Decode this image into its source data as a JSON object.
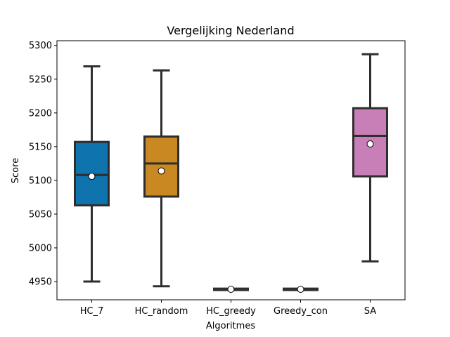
{
  "chart_data": {
    "type": "box",
    "title": "Vergelijking Nederland",
    "xlabel": "Algoritmes",
    "ylabel": "Score",
    "ylim": [
      4923,
      5307
    ],
    "yticks": [
      4950,
      5000,
      5050,
      5100,
      5150,
      5200,
      5250,
      5300
    ],
    "grid": false,
    "categories": [
      "HC_7",
      "HC_random",
      "HC_greedy",
      "Greedy_con",
      "SA"
    ],
    "boxes": [
      {
        "category": "HC_7",
        "color": "#0F73AE",
        "whisker_low": 4950,
        "q1": 5063,
        "median": 5108,
        "q3": 5157,
        "whisker_high": 5269,
        "mean": 5106
      },
      {
        "category": "HC_random",
        "color": "#C98822",
        "whisker_low": 4943,
        "q1": 5076,
        "median": 5125,
        "q3": 5165,
        "whisker_high": 5263,
        "mean": 5114
      },
      {
        "category": "HC_greedy",
        "color": "#1B9E77",
        "whisker_low": 4938.5,
        "q1": 4938.5,
        "median": 4938.5,
        "q3": 4938.5,
        "whisker_high": 4938.5,
        "mean": 4938.5
      },
      {
        "category": "Greedy_con",
        "color": "#D55E00",
        "whisker_low": 4938.5,
        "q1": 4938.5,
        "median": 4938.5,
        "q3": 4938.5,
        "whisker_high": 4938.5,
        "mean": 4938.5
      },
      {
        "category": "SA",
        "color": "#C87FB8",
        "whisker_low": 4980,
        "q1": 5106,
        "median": 5166,
        "q3": 5207,
        "whisker_high": 5287,
        "mean": 5154
      }
    ]
  }
}
